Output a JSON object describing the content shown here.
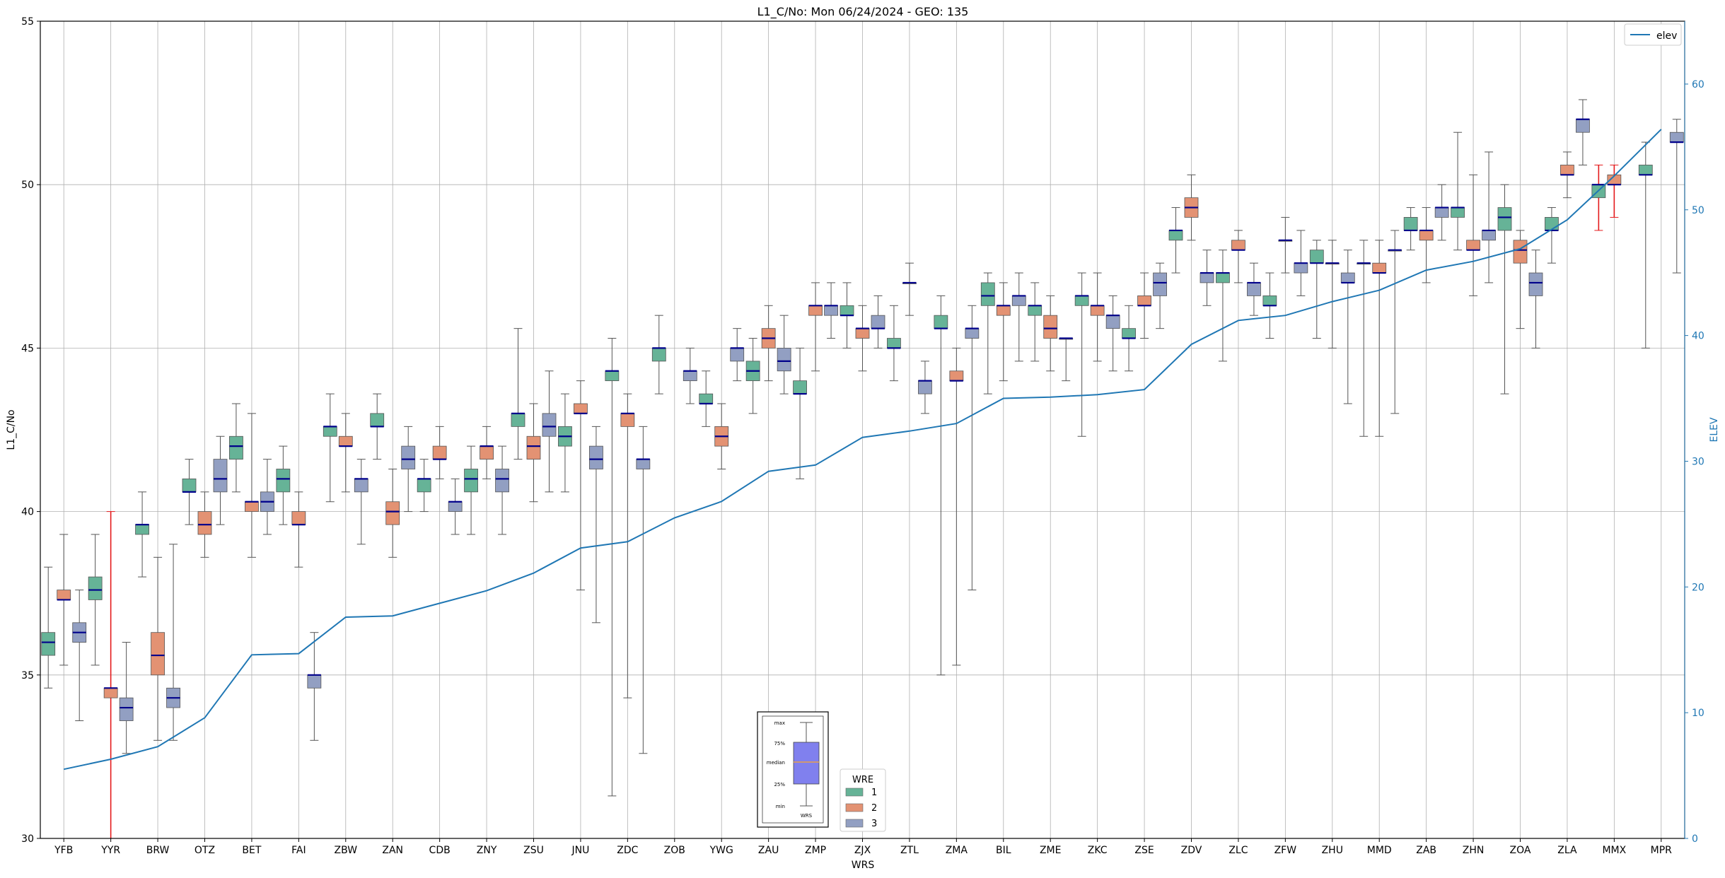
{
  "chart_data": {
    "type": "box",
    "title": "L1_C/No: Mon 06/24/2024 - GEO: 135",
    "xlabel": "WRS",
    "ylabel": "L1_C/No",
    "y2label": "ELEV",
    "ylim": [
      30,
      55
    ],
    "y2lim": [
      0,
      65
    ],
    "yticks": [
      30,
      35,
      40,
      45,
      50,
      55
    ],
    "y2ticks": [
      0,
      10,
      20,
      30,
      40,
      50,
      60
    ],
    "grid": true,
    "categories": [
      "YFB",
      "YYR",
      "BRW",
      "OTZ",
      "BET",
      "FAI",
      "ZBW",
      "ZAN",
      "CDB",
      "ZNY",
      "ZSU",
      "JNU",
      "ZDC",
      "ZOB",
      "YWG",
      "ZAU",
      "ZMP",
      "ZJX",
      "ZTL",
      "ZMA",
      "BIL",
      "ZME",
      "ZKC",
      "ZSE",
      "ZDV",
      "ZLC",
      "ZFW",
      "ZHU",
      "MMD",
      "ZAB",
      "ZHN",
      "ZOA",
      "ZLA",
      "MMX",
      "MPR"
    ],
    "wre_colors": {
      "1": "#66b397",
      "2": "#e39273",
      "3": "#929fc2"
    },
    "boxes": [
      {
        "site": "YFB",
        "wre": 1,
        "min": 34.6,
        "q1": 35.6,
        "median": 36.0,
        "q3": 36.3,
        "max": 38.3
      },
      {
        "site": "YFB",
        "wre": 2,
        "min": 35.3,
        "q1": 37.3,
        "median": 37.3,
        "q3": 37.6,
        "max": 39.3
      },
      {
        "site": "YFB",
        "wre": 3,
        "min": 33.6,
        "q1": 36.0,
        "median": 36.3,
        "q3": 36.6,
        "max": 37.6
      },
      {
        "site": "YYR",
        "wre": 1,
        "min": 35.3,
        "q1": 37.3,
        "median": 37.6,
        "q3": 38.0,
        "max": 39.3
      },
      {
        "site": "YYR",
        "wre": 2,
        "min": 30.0,
        "q1": 34.3,
        "median": 34.6,
        "q3": 34.6,
        "max": 40.0,
        "outlier_whisker": true
      },
      {
        "site": "YYR",
        "wre": 3,
        "min": 32.6,
        "q1": 33.6,
        "median": 34.0,
        "q3": 34.3,
        "max": 36.0
      },
      {
        "site": "BRW",
        "wre": 1,
        "min": 38.0,
        "q1": 39.3,
        "median": 39.6,
        "q3": 39.6,
        "max": 40.6
      },
      {
        "site": "BRW",
        "wre": 2,
        "min": 33.0,
        "q1": 35.0,
        "median": 35.6,
        "q3": 36.3,
        "max": 38.6
      },
      {
        "site": "BRW",
        "wre": 3,
        "min": 33.0,
        "q1": 34.0,
        "median": 34.3,
        "q3": 34.6,
        "max": 39.0
      },
      {
        "site": "OTZ",
        "wre": 1,
        "min": 39.6,
        "q1": 40.6,
        "median": 40.6,
        "q3": 41.0,
        "max": 41.6
      },
      {
        "site": "OTZ",
        "wre": 2,
        "min": 38.6,
        "q1": 39.3,
        "median": 39.6,
        "q3": 40.0,
        "max": 40.6
      },
      {
        "site": "OTZ",
        "wre": 3,
        "min": 39.6,
        "q1": 40.6,
        "median": 41.0,
        "q3": 41.6,
        "max": 42.3
      },
      {
        "site": "BET",
        "wre": 1,
        "min": 40.6,
        "q1": 41.6,
        "median": 42.0,
        "q3": 42.3,
        "max": 43.3
      },
      {
        "site": "BET",
        "wre": 2,
        "min": 38.6,
        "q1": 40.0,
        "median": 40.3,
        "q3": 40.3,
        "max": 43.0
      },
      {
        "site": "BET",
        "wre": 3,
        "min": 39.3,
        "q1": 40.0,
        "median": 40.3,
        "q3": 40.6,
        "max": 41.6
      },
      {
        "site": "FAI",
        "wre": 1,
        "min": 39.6,
        "q1": 40.6,
        "median": 41.0,
        "q3": 41.3,
        "max": 42.0
      },
      {
        "site": "FAI",
        "wre": 2,
        "min": 38.3,
        "q1": 39.6,
        "median": 39.6,
        "q3": 40.0,
        "max": 40.6
      },
      {
        "site": "FAI",
        "wre": 3,
        "min": 33.0,
        "q1": 34.6,
        "median": 35.0,
        "q3": 35.0,
        "max": 36.3
      },
      {
        "site": "ZBW",
        "wre": 1,
        "min": 40.3,
        "q1": 42.3,
        "median": 42.6,
        "q3": 42.6,
        "max": 43.6
      },
      {
        "site": "ZBW",
        "wre": 2,
        "min": 40.6,
        "q1": 42.0,
        "median": 42.0,
        "q3": 42.3,
        "max": 43.0
      },
      {
        "site": "ZBW",
        "wre": 3,
        "min": 39.0,
        "q1": 40.6,
        "median": 41.0,
        "q3": 41.0,
        "max": 41.6
      },
      {
        "site": "ZAN",
        "wre": 1,
        "min": 41.6,
        "q1": 42.6,
        "median": 42.6,
        "q3": 43.0,
        "max": 43.6
      },
      {
        "site": "ZAN",
        "wre": 2,
        "min": 38.6,
        "q1": 39.6,
        "median": 40.0,
        "q3": 40.3,
        "max": 41.3
      },
      {
        "site": "ZAN",
        "wre": 3,
        "min": 40.0,
        "q1": 41.3,
        "median": 41.6,
        "q3": 42.0,
        "max": 42.6
      },
      {
        "site": "CDB",
        "wre": 1,
        "min": 40.0,
        "q1": 40.6,
        "median": 41.0,
        "q3": 41.0,
        "max": 41.6
      },
      {
        "site": "CDB",
        "wre": 2,
        "min": 41.0,
        "q1": 41.6,
        "median": 41.6,
        "q3": 42.0,
        "max": 42.6
      },
      {
        "site": "CDB",
        "wre": 3,
        "min": 39.3,
        "q1": 40.0,
        "median": 40.3,
        "q3": 40.3,
        "max": 41.0
      },
      {
        "site": "ZNY",
        "wre": 1,
        "min": 39.3,
        "q1": 40.6,
        "median": 41.0,
        "q3": 41.3,
        "max": 42.0
      },
      {
        "site": "ZNY",
        "wre": 2,
        "min": 41.0,
        "q1": 41.6,
        "median": 42.0,
        "q3": 42.0,
        "max": 42.6
      },
      {
        "site": "ZNY",
        "wre": 3,
        "min": 39.3,
        "q1": 40.6,
        "median": 41.0,
        "q3": 41.3,
        "max": 42.0
      },
      {
        "site": "ZSU",
        "wre": 1,
        "min": 41.6,
        "q1": 42.6,
        "median": 43.0,
        "q3": 43.0,
        "max": 45.6
      },
      {
        "site": "ZSU",
        "wre": 2,
        "min": 40.3,
        "q1": 41.6,
        "median": 42.0,
        "q3": 42.3,
        "max": 43.3
      },
      {
        "site": "ZSU",
        "wre": 3,
        "min": 40.6,
        "q1": 42.3,
        "median": 42.6,
        "q3": 43.0,
        "max": 44.3
      },
      {
        "site": "JNU",
        "wre": 1,
        "min": 40.6,
        "q1": 42.0,
        "median": 42.3,
        "q3": 42.6,
        "max": 43.6
      },
      {
        "site": "JNU",
        "wre": 2,
        "min": 37.6,
        "q1": 43.0,
        "median": 43.0,
        "q3": 43.3,
        "max": 44.0
      },
      {
        "site": "JNU",
        "wre": 3,
        "min": 36.6,
        "q1": 41.3,
        "median": 41.6,
        "q3": 42.0,
        "max": 42.6
      },
      {
        "site": "ZDC",
        "wre": 1,
        "min": 31.3,
        "q1": 44.0,
        "median": 44.3,
        "q3": 44.3,
        "max": 45.3
      },
      {
        "site": "ZDC",
        "wre": 2,
        "min": 34.3,
        "q1": 42.6,
        "median": 43.0,
        "q3": 43.0,
        "max": 43.6
      },
      {
        "site": "ZDC",
        "wre": 3,
        "min": 32.6,
        "q1": 41.3,
        "median": 41.6,
        "q3": 41.6,
        "max": 42.6
      },
      {
        "site": "ZOB",
        "wre": 1,
        "min": 43.6,
        "q1": 44.6,
        "median": 45.0,
        "q3": 45.0,
        "max": 46.0
      },
      {
        "site": "ZOB",
        "wre": 3,
        "min": 43.3,
        "q1": 44.0,
        "median": 44.3,
        "q3": 44.3,
        "max": 45.0
      },
      {
        "site": "YWG",
        "wre": 1,
        "min": 42.6,
        "q1": 43.3,
        "median": 43.3,
        "q3": 43.6,
        "max": 44.3
      },
      {
        "site": "YWG",
        "wre": 2,
        "min": 41.3,
        "q1": 42.0,
        "median": 42.3,
        "q3": 42.6,
        "max": 43.3
      },
      {
        "site": "YWG",
        "wre": 3,
        "min": 44.0,
        "q1": 44.6,
        "median": 45.0,
        "q3": 45.0,
        "max": 45.6
      },
      {
        "site": "ZAU",
        "wre": 1,
        "min": 43.0,
        "q1": 44.0,
        "median": 44.3,
        "q3": 44.6,
        "max": 45.3
      },
      {
        "site": "ZAU",
        "wre": 2,
        "min": 44.0,
        "q1": 45.0,
        "median": 45.3,
        "q3": 45.6,
        "max": 46.3
      },
      {
        "site": "ZAU",
        "wre": 3,
        "min": 43.6,
        "q1": 44.3,
        "median": 44.6,
        "q3": 45.0,
        "max": 46.0
      },
      {
        "site": "ZMP",
        "wre": 1,
        "min": 41.0,
        "q1": 43.6,
        "median": 43.6,
        "q3": 44.0,
        "max": 45.0
      },
      {
        "site": "ZMP",
        "wre": 2,
        "min": 44.3,
        "q1": 46.0,
        "median": 46.3,
        "q3": 46.3,
        "max": 47.0
      },
      {
        "site": "ZMP",
        "wre": 3,
        "min": 45.3,
        "q1": 46.0,
        "median": 46.3,
        "q3": 46.3,
        "max": 47.0
      },
      {
        "site": "ZJX",
        "wre": 1,
        "min": 45.0,
        "q1": 46.0,
        "median": 46.0,
        "q3": 46.3,
        "max": 47.0
      },
      {
        "site": "ZJX",
        "wre": 2,
        "min": 44.3,
        "q1": 45.3,
        "median": 45.6,
        "q3": 45.6,
        "max": 46.3
      },
      {
        "site": "ZJX",
        "wre": 3,
        "min": 45.0,
        "q1": 45.6,
        "median": 45.6,
        "q3": 46.0,
        "max": 46.6
      },
      {
        "site": "ZTL",
        "wre": 1,
        "min": 44.0,
        "q1": 45.0,
        "median": 45.0,
        "q3": 45.3,
        "max": 46.3
      },
      {
        "site": "ZTL",
        "wre": 2,
        "min": 46.0,
        "q1": 47.0,
        "median": 47.0,
        "q3": 47.0,
        "max": 47.6
      },
      {
        "site": "ZTL",
        "wre": 3,
        "min": 43.0,
        "q1": 43.6,
        "median": 44.0,
        "q3": 44.0,
        "max": 44.6
      },
      {
        "site": "ZMA",
        "wre": 1,
        "min": 35.0,
        "q1": 45.6,
        "median": 45.6,
        "q3": 46.0,
        "max": 46.6
      },
      {
        "site": "ZMA",
        "wre": 2,
        "min": 35.3,
        "q1": 44.0,
        "median": 44.0,
        "q3": 44.3,
        "max": 45.0
      },
      {
        "site": "ZMA",
        "wre": 3,
        "min": 37.6,
        "q1": 45.3,
        "median": 45.6,
        "q3": 45.6,
        "max": 46.3
      },
      {
        "site": "BIL",
        "wre": 1,
        "min": 43.6,
        "q1": 46.3,
        "median": 46.6,
        "q3": 47.0,
        "max": 47.3
      },
      {
        "site": "BIL",
        "wre": 2,
        "min": 44.0,
        "q1": 46.0,
        "median": 46.3,
        "q3": 46.3,
        "max": 47.0
      },
      {
        "site": "BIL",
        "wre": 3,
        "min": 44.6,
        "q1": 46.3,
        "median": 46.6,
        "q3": 46.6,
        "max": 47.3
      },
      {
        "site": "ZME",
        "wre": 1,
        "min": 44.6,
        "q1": 46.0,
        "median": 46.3,
        "q3": 46.3,
        "max": 47.0
      },
      {
        "site": "ZME",
        "wre": 2,
        "min": 44.3,
        "q1": 45.3,
        "median": 45.6,
        "q3": 46.0,
        "max": 46.6
      },
      {
        "site": "ZME",
        "wre": 3,
        "min": 44.0,
        "q1": 45.3,
        "median": 45.3,
        "q3": 45.3,
        "max": 45.3
      },
      {
        "site": "ZKC",
        "wre": 1,
        "min": 42.3,
        "q1": 46.3,
        "median": 46.6,
        "q3": 46.6,
        "max": 47.3
      },
      {
        "site": "ZKC",
        "wre": 2,
        "min": 44.6,
        "q1": 46.0,
        "median": 46.3,
        "q3": 46.3,
        "max": 47.3
      },
      {
        "site": "ZKC",
        "wre": 3,
        "min": 44.3,
        "q1": 45.6,
        "median": 46.0,
        "q3": 46.0,
        "max": 46.6
      },
      {
        "site": "ZSE",
        "wre": 1,
        "min": 44.3,
        "q1": 45.3,
        "median": 45.3,
        "q3": 45.6,
        "max": 46.3
      },
      {
        "site": "ZSE",
        "wre": 2,
        "min": 45.3,
        "q1": 46.3,
        "median": 46.3,
        "q3": 46.6,
        "max": 47.3
      },
      {
        "site": "ZSE",
        "wre": 3,
        "min": 45.6,
        "q1": 46.6,
        "median": 47.0,
        "q3": 47.3,
        "max": 47.6
      },
      {
        "site": "ZDV",
        "wre": 1,
        "min": 47.3,
        "q1": 48.3,
        "median": 48.6,
        "q3": 48.6,
        "max": 49.3
      },
      {
        "site": "ZDV",
        "wre": 2,
        "min": 48.3,
        "q1": 49.0,
        "median": 49.3,
        "q3": 49.6,
        "max": 50.3
      },
      {
        "site": "ZDV",
        "wre": 3,
        "min": 46.3,
        "q1": 47.0,
        "median": 47.3,
        "q3": 47.3,
        "max": 48.0
      },
      {
        "site": "ZLC",
        "wre": 1,
        "min": 44.6,
        "q1": 47.0,
        "median": 47.3,
        "q3": 47.3,
        "max": 48.0
      },
      {
        "site": "ZLC",
        "wre": 2,
        "min": 47.0,
        "q1": 48.0,
        "median": 48.0,
        "q3": 48.3,
        "max": 48.6
      },
      {
        "site": "ZLC",
        "wre": 3,
        "min": 46.0,
        "q1": 46.6,
        "median": 47.0,
        "q3": 47.0,
        "max": 47.6
      },
      {
        "site": "ZFW",
        "wre": 1,
        "min": 45.3,
        "q1": 46.3,
        "median": 46.3,
        "q3": 46.6,
        "max": 47.3
      },
      {
        "site": "ZFW",
        "wre": 2,
        "min": 47.3,
        "q1": 48.3,
        "median": 48.3,
        "q3": 48.3,
        "max": 49.0
      },
      {
        "site": "ZFW",
        "wre": 3,
        "min": 46.6,
        "q1": 47.3,
        "median": 47.6,
        "q3": 47.6,
        "max": 48.6
      },
      {
        "site": "ZHU",
        "wre": 1,
        "min": 45.3,
        "q1": 47.6,
        "median": 47.6,
        "q3": 48.0,
        "max": 48.3
      },
      {
        "site": "ZHU",
        "wre": 2,
        "min": 45.0,
        "q1": 47.6,
        "median": 47.6,
        "q3": 47.6,
        "max": 48.3
      },
      {
        "site": "ZHU",
        "wre": 3,
        "min": 43.3,
        "q1": 47.0,
        "median": 47.0,
        "q3": 47.3,
        "max": 48.0
      },
      {
        "site": "MMD",
        "wre": 1,
        "min": 42.3,
        "q1": 47.6,
        "median": 47.6,
        "q3": 47.6,
        "max": 48.3
      },
      {
        "site": "MMD",
        "wre": 2,
        "min": 42.3,
        "q1": 47.3,
        "median": 47.3,
        "q3": 47.6,
        "max": 48.3
      },
      {
        "site": "MMD",
        "wre": 3,
        "min": 43.0,
        "q1": 48.0,
        "median": 48.0,
        "q3": 48.0,
        "max": 48.6
      },
      {
        "site": "ZAB",
        "wre": 1,
        "min": 48.0,
        "q1": 48.6,
        "median": 48.6,
        "q3": 49.0,
        "max": 49.3
      },
      {
        "site": "ZAB",
        "wre": 2,
        "min": 47.0,
        "q1": 48.3,
        "median": 48.6,
        "q3": 48.6,
        "max": 49.3
      },
      {
        "site": "ZAB",
        "wre": 3,
        "min": 48.3,
        "q1": 49.0,
        "median": 49.3,
        "q3": 49.3,
        "max": 50.0
      },
      {
        "site": "ZHN",
        "wre": 1,
        "min": 48.0,
        "q1": 49.0,
        "median": 49.3,
        "q3": 49.3,
        "max": 51.6
      },
      {
        "site": "ZHN",
        "wre": 2,
        "min": 46.6,
        "q1": 48.0,
        "median": 48.0,
        "q3": 48.3,
        "max": 50.3
      },
      {
        "site": "ZHN",
        "wre": 3,
        "min": 47.0,
        "q1": 48.3,
        "median": 48.6,
        "q3": 48.6,
        "max": 51.0
      },
      {
        "site": "ZOA",
        "wre": 1,
        "min": 43.6,
        "q1": 48.6,
        "median": 49.0,
        "q3": 49.3,
        "max": 50.0
      },
      {
        "site": "ZOA",
        "wre": 2,
        "min": 45.6,
        "q1": 47.6,
        "median": 48.0,
        "q3": 48.3,
        "max": 48.6
      },
      {
        "site": "ZOA",
        "wre": 3,
        "min": 45.0,
        "q1": 46.6,
        "median": 47.0,
        "q3": 47.3,
        "max": 48.0
      },
      {
        "site": "ZLA",
        "wre": 1,
        "min": 47.6,
        "q1": 48.6,
        "median": 48.6,
        "q3": 49.0,
        "max": 49.3
      },
      {
        "site": "ZLA",
        "wre": 2,
        "min": 49.6,
        "q1": 50.3,
        "median": 50.3,
        "q3": 50.6,
        "max": 51.0
      },
      {
        "site": "ZLA",
        "wre": 3,
        "min": 50.6,
        "q1": 51.6,
        "median": 52.0,
        "q3": 52.0,
        "max": 52.6
      },
      {
        "site": "MMX",
        "wre": 1,
        "min": 48.6,
        "q1": 49.6,
        "median": 50.0,
        "q3": 50.0,
        "max": 50.6,
        "outlier_whisker": true
      },
      {
        "site": "MMX",
        "wre": 2,
        "min": 49.0,
        "q1": 50.0,
        "median": 50.0,
        "q3": 50.3,
        "max": 50.6,
        "outlier_whisker": true
      },
      {
        "site": "MPR",
        "wre": 1,
        "min": 45.0,
        "q1": 50.3,
        "median": 50.3,
        "q3": 50.6,
        "max": 51.3
      },
      {
        "site": "MPR",
        "wre": 3,
        "min": 47.3,
        "q1": 51.3,
        "median": 51.3,
        "q3": 51.6,
        "max": 52.0
      }
    ],
    "elev": {
      "name": "elev",
      "color": "#1f77b4",
      "values": [
        5.5,
        6.3,
        7.3,
        9.6,
        14.6,
        14.7,
        17.6,
        17.7,
        18.7,
        19.7,
        21.1,
        23.1,
        23.6,
        25.5,
        26.8,
        29.2,
        29.7,
        31.9,
        32.4,
        33.0,
        35.0,
        35.1,
        35.3,
        35.7,
        39.3,
        41.2,
        41.6,
        42.7,
        43.6,
        45.2,
        45.9,
        46.9,
        49.2,
        52.7,
        56.4
      ]
    },
    "legend_wre": {
      "title": "WRE",
      "entries": [
        "1",
        "2",
        "3"
      ]
    },
    "legend_elev": {
      "entries": [
        "elev"
      ],
      "position": "top-right"
    },
    "key_box": {
      "labels": [
        "max",
        "75%",
        "median",
        "25%",
        "min"
      ],
      "xlabel": "WRS"
    }
  }
}
